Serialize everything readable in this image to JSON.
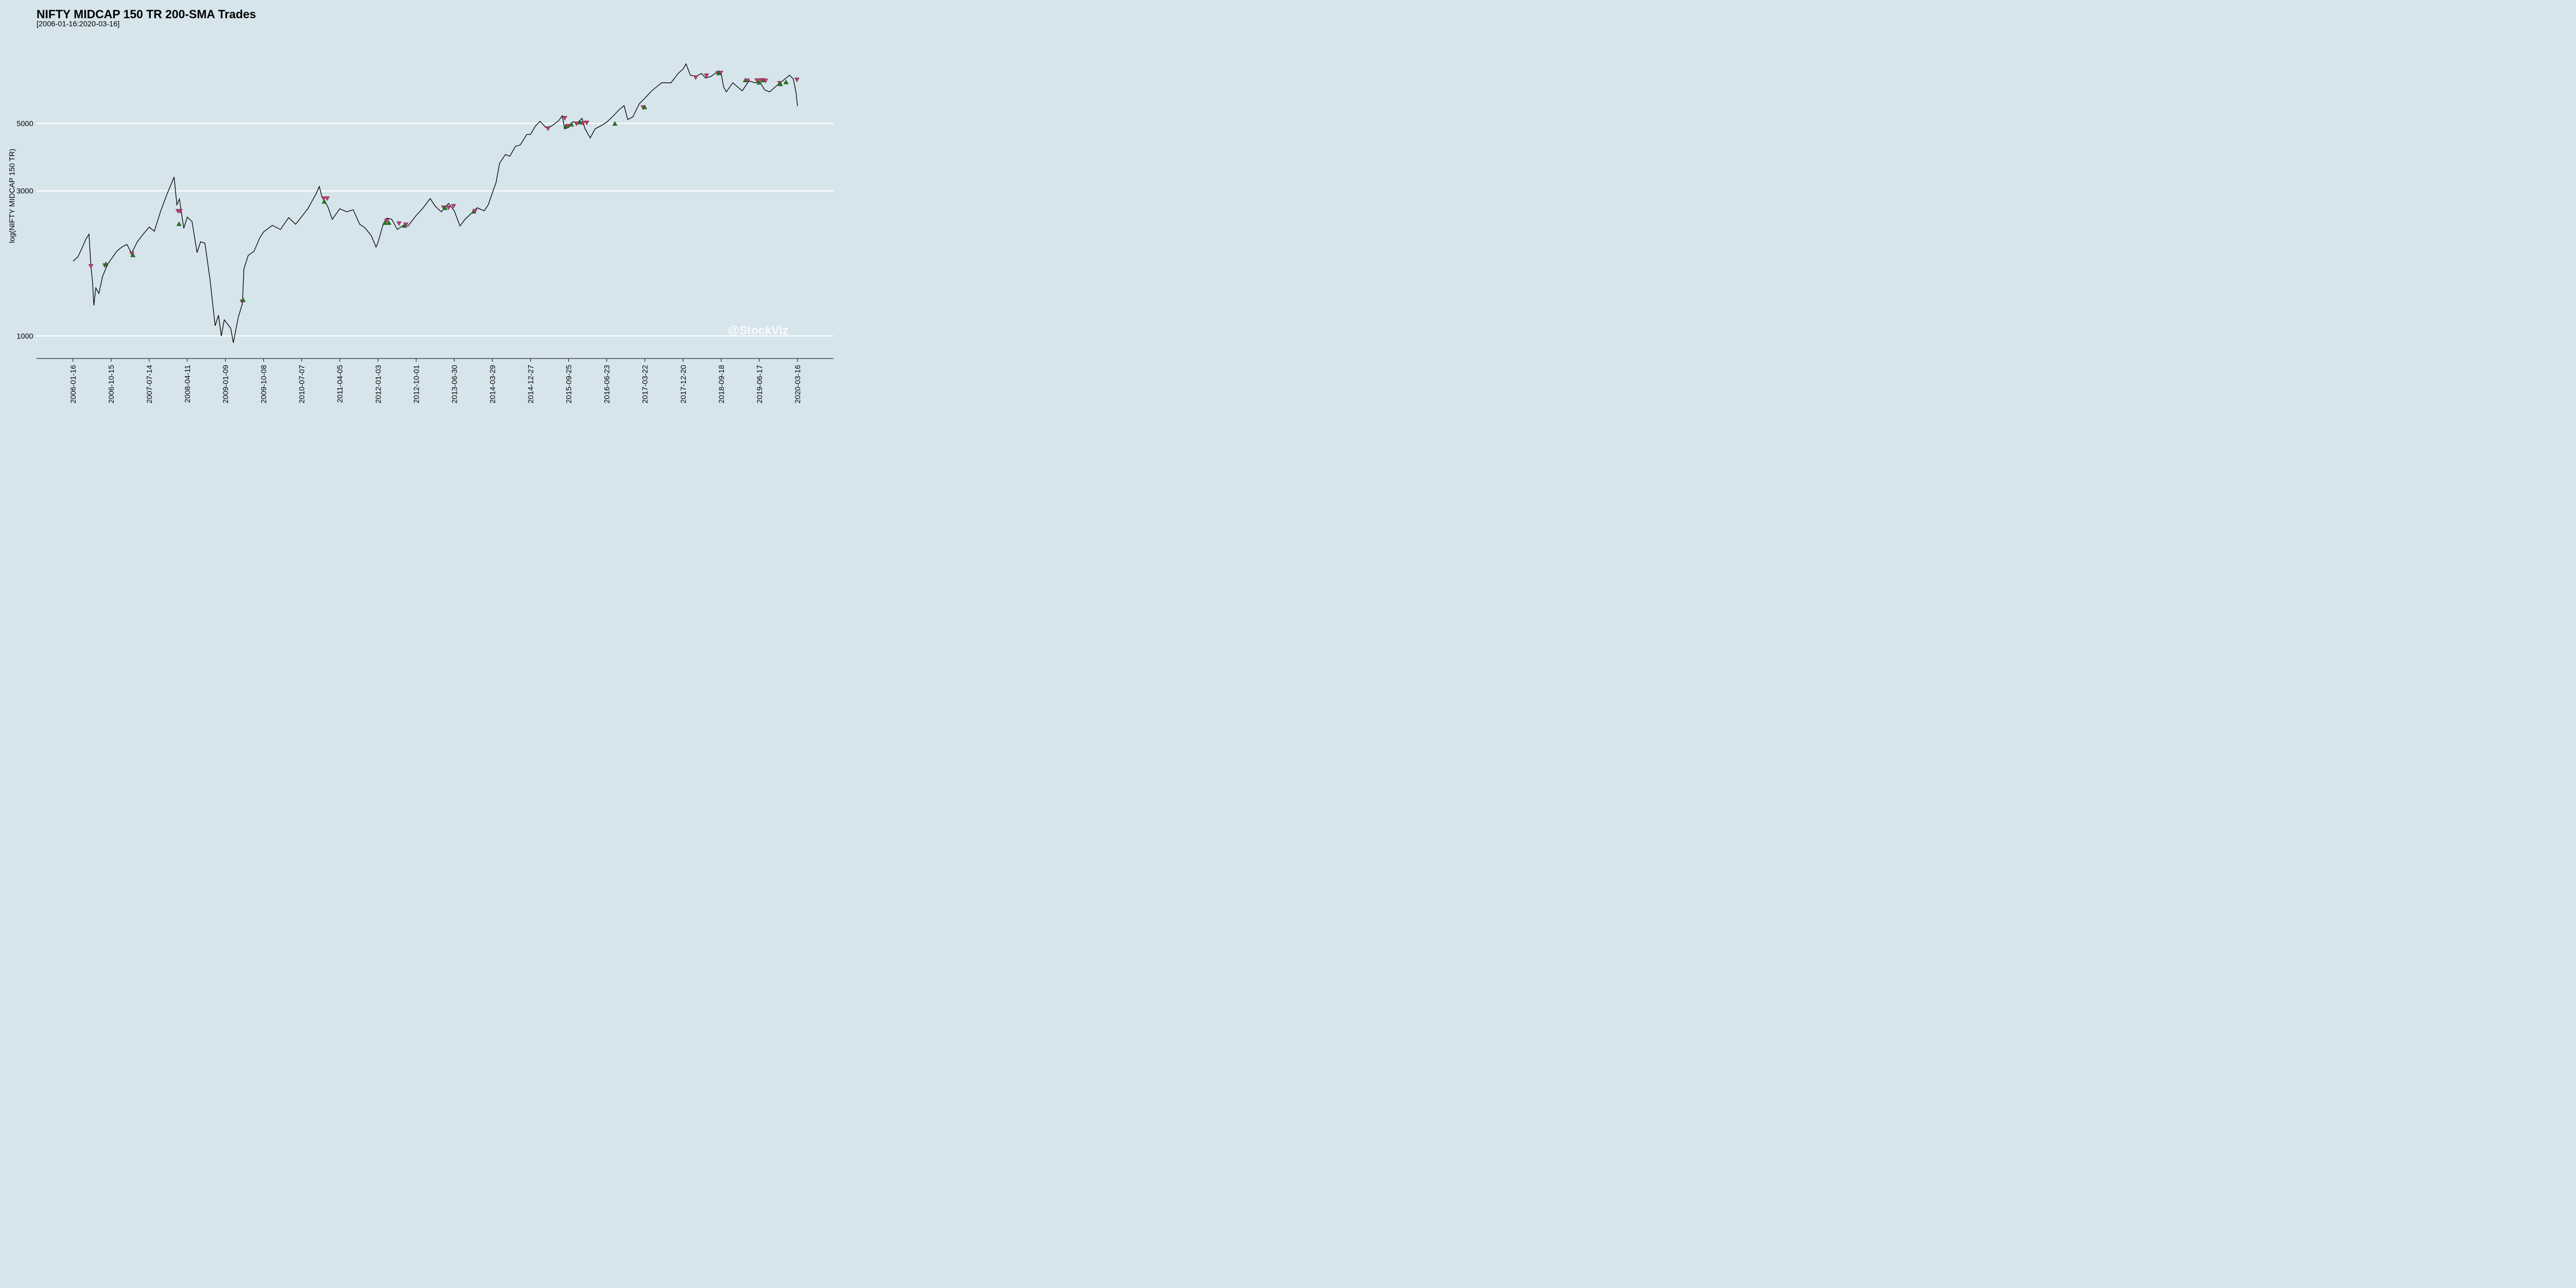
{
  "chart_data": {
    "type": "line",
    "title": "NIFTY MIDCAP 150 TR 200-SMA Trades",
    "subtitle": "[2006-01-16:2020-03-16]",
    "xlabel": "",
    "ylabel": "log(NIFTY MIDCAP 150 TR)",
    "y_scale": "log",
    "ylim": [
      930,
      8400
    ],
    "y_ticks": [
      1000,
      3000,
      5000
    ],
    "grid": "horizontal",
    "watermark": "@StockViz",
    "x_ticks": [
      "2006-01-16",
      "2006-10-15",
      "2007-07-14",
      "2008-04-11",
      "2009-01-09",
      "2009-10-08",
      "2010-07-07",
      "2011-04-05",
      "2012-01-03",
      "2012-10-01",
      "2013-06-30",
      "2014-03-29",
      "2014-12-27",
      "2015-09-25",
      "2016-06-23",
      "2017-03-22",
      "2017-12-20",
      "2018-09-18",
      "2019-06-17",
      "2020-03-16"
    ],
    "series": [
      {
        "name": "",
        "color": "#000000",
        "points": [
          [
            "2006-01-16",
            1760
          ],
          [
            "2006-02-20",
            1820
          ],
          [
            "2006-03-25",
            1960
          ],
          [
            "2006-04-20",
            2090
          ],
          [
            "2006-05-10",
            2160
          ],
          [
            "2006-05-24",
            1700
          ],
          [
            "2006-06-05",
            1500
          ],
          [
            "2006-06-14",
            1260
          ],
          [
            "2006-06-28",
            1440
          ],
          [
            "2006-07-20",
            1380
          ],
          [
            "2006-08-15",
            1570
          ],
          [
            "2006-09-20",
            1720
          ],
          [
            "2006-10-20",
            1800
          ],
          [
            "2006-11-25",
            1900
          ],
          [
            "2006-12-30",
            1960
          ],
          [
            "2007-02-05",
            2000
          ],
          [
            "2007-03-10",
            1870
          ],
          [
            "2007-04-20",
            2040
          ],
          [
            "2007-06-01",
            2160
          ],
          [
            "2007-07-14",
            2280
          ],
          [
            "2007-08-20",
            2210
          ],
          [
            "2007-10-01",
            2550
          ],
          [
            "2007-11-15",
            2900
          ],
          [
            "2008-01-08",
            3330
          ],
          [
            "2008-01-28",
            2700
          ],
          [
            "2008-02-15",
            2820
          ],
          [
            "2008-03-17",
            2260
          ],
          [
            "2008-04-11",
            2460
          ],
          [
            "2008-05-15",
            2380
          ],
          [
            "2008-06-20",
            1880
          ],
          [
            "2008-07-15",
            2040
          ],
          [
            "2008-08-15",
            2020
          ],
          [
            "2008-09-20",
            1540
          ],
          [
            "2008-10-27",
            1080
          ],
          [
            "2008-11-20",
            1170
          ],
          [
            "2008-12-10",
            1000
          ],
          [
            "2008-12-31",
            1130
          ],
          [
            "2009-02-15",
            1060
          ],
          [
            "2009-03-06",
            950
          ],
          [
            "2009-04-10",
            1150
          ],
          [
            "2009-05-10",
            1280
          ],
          [
            "2009-05-20",
            1660
          ],
          [
            "2009-06-20",
            1840
          ],
          [
            "2009-08-01",
            1900
          ],
          [
            "2009-09-10",
            2100
          ],
          [
            "2009-10-08",
            2200
          ],
          [
            "2009-12-10",
            2310
          ],
          [
            "2010-02-05",
            2240
          ],
          [
            "2010-04-05",
            2450
          ],
          [
            "2010-05-25",
            2330
          ],
          [
            "2010-07-07",
            2470
          ],
          [
            "2010-08-20",
            2620
          ],
          [
            "2010-10-15",
            2920
          ],
          [
            "2010-11-10",
            3100
          ],
          [
            "2010-11-30",
            2850
          ],
          [
            "2011-01-10",
            2660
          ],
          [
            "2011-02-10",
            2420
          ],
          [
            "2011-04-05",
            2620
          ],
          [
            "2011-05-25",
            2560
          ],
          [
            "2011-07-10",
            2600
          ],
          [
            "2011-08-25",
            2330
          ],
          [
            "2011-10-01",
            2270
          ],
          [
            "2011-11-15",
            2140
          ],
          [
            "2011-12-20",
            1960
          ],
          [
            "2012-01-03",
            2030
          ],
          [
            "2012-02-05",
            2300
          ],
          [
            "2012-03-05",
            2440
          ],
          [
            "2012-04-10",
            2420
          ],
          [
            "2012-05-20",
            2240
          ],
          [
            "2012-06-30",
            2310
          ],
          [
            "2012-08-05",
            2300
          ],
          [
            "2012-10-01",
            2490
          ],
          [
            "2012-11-15",
            2620
          ],
          [
            "2013-01-10",
            2830
          ],
          [
            "2013-02-15",
            2670
          ],
          [
            "2013-03-30",
            2560
          ],
          [
            "2013-05-20",
            2730
          ],
          [
            "2013-06-30",
            2580
          ],
          [
            "2013-08-10",
            2300
          ],
          [
            "2013-09-15",
            2420
          ],
          [
            "2013-10-30",
            2530
          ],
          [
            "2013-12-10",
            2640
          ],
          [
            "2014-01-30",
            2580
          ],
          [
            "2014-02-28",
            2700
          ],
          [
            "2014-03-29",
            2950
          ],
          [
            "2014-04-25",
            3200
          ],
          [
            "2014-05-20",
            3700
          ],
          [
            "2014-06-30",
            3950
          ],
          [
            "2014-08-01",
            3900
          ],
          [
            "2014-09-10",
            4200
          ],
          [
            "2014-10-15",
            4250
          ],
          [
            "2014-11-30",
            4600
          ],
          [
            "2014-12-27",
            4600
          ],
          [
            "2015-01-30",
            4900
          ],
          [
            "2015-03-05",
            5080
          ],
          [
            "2015-04-15",
            4850
          ],
          [
            "2015-05-25",
            4900
          ],
          [
            "2015-07-15",
            5100
          ],
          [
            "2015-08-10",
            5300
          ],
          [
            "2015-08-28",
            4800
          ],
          [
            "2015-09-25",
            4850
          ],
          [
            "2015-10-25",
            5060
          ],
          [
            "2015-12-01",
            5050
          ],
          [
            "2015-12-30",
            5200
          ],
          [
            "2016-01-20",
            4800
          ],
          [
            "2016-02-26",
            4480
          ],
          [
            "2016-04-01",
            4800
          ],
          [
            "2016-05-15",
            4920
          ],
          [
            "2016-06-23",
            5050
          ],
          [
            "2016-08-10",
            5300
          ],
          [
            "2016-09-20",
            5550
          ],
          [
            "2016-10-25",
            5720
          ],
          [
            "2016-11-20",
            5150
          ],
          [
            "2016-12-26",
            5250
          ],
          [
            "2017-02-10",
            5800
          ],
          [
            "2017-03-22",
            6050
          ],
          [
            "2017-05-10",
            6400
          ],
          [
            "2017-07-20",
            6800
          ],
          [
            "2017-09-25",
            6800
          ],
          [
            "2017-11-15",
            7300
          ],
          [
            "2017-12-20",
            7550
          ],
          [
            "2018-01-10",
            7850
          ],
          [
            "2018-02-10",
            7200
          ],
          [
            "2018-03-25",
            7150
          ],
          [
            "2018-05-01",
            7300
          ],
          [
            "2018-05-30",
            7050
          ],
          [
            "2018-07-10",
            7150
          ],
          [
            "2018-08-31",
            7450
          ],
          [
            "2018-09-18",
            7300
          ],
          [
            "2018-10-05",
            6600
          ],
          [
            "2018-10-25",
            6350
          ],
          [
            "2018-12-10",
            6800
          ],
          [
            "2019-02-15",
            6400
          ],
          [
            "2019-04-05",
            6900
          ],
          [
            "2019-05-20",
            6800
          ],
          [
            "2019-06-17",
            6900
          ],
          [
            "2019-07-25",
            6450
          ],
          [
            "2019-08-30",
            6350
          ],
          [
            "2019-10-10",
            6600
          ],
          [
            "2019-11-30",
            6900
          ],
          [
            "2020-01-20",
            7200
          ],
          [
            "2020-02-15",
            7000
          ],
          [
            "2020-03-06",
            6300
          ],
          [
            "2020-03-16",
            5700
          ]
        ]
      }
    ],
    "trades": [
      {
        "type": "exit",
        "date": "2006-05-24",
        "value": 1700
      },
      {
        "type": "exit",
        "date": "2006-09-01",
        "value": 1710
      },
      {
        "type": "entry",
        "date": "2006-09-08",
        "value": 1720
      },
      {
        "type": "exit",
        "date": "2007-03-12",
        "value": 1870
      },
      {
        "type": "entry",
        "date": "2007-03-20",
        "value": 1840
      },
      {
        "type": "exit",
        "date": "2008-02-05",
        "value": 2580
      },
      {
        "type": "exit",
        "date": "2008-02-20",
        "value": 2580
      },
      {
        "type": "entry",
        "date": "2008-02-12",
        "value": 2330
      },
      {
        "type": "exit",
        "date": "2009-05-08",
        "value": 1300
      },
      {
        "type": "entry",
        "date": "2009-05-15",
        "value": 1310
      },
      {
        "type": "exit",
        "date": "2010-12-10",
        "value": 2840
      },
      {
        "type": "entry",
        "date": "2010-12-15",
        "value": 2760
      },
      {
        "type": "exit",
        "date": "2011-01-05",
        "value": 2840
      },
      {
        "type": "entry",
        "date": "2012-02-20",
        "value": 2350
      },
      {
        "type": "exit",
        "date": "2012-03-05",
        "value": 2400
      },
      {
        "type": "entry",
        "date": "2012-03-20",
        "value": 2350
      },
      {
        "type": "exit",
        "date": "2012-06-01",
        "value": 2350
      },
      {
        "type": "entry",
        "date": "2012-07-10",
        "value": 2300
      },
      {
        "type": "exit",
        "date": "2012-07-20",
        "value": 2330
      },
      {
        "type": "exit",
        "date": "2013-04-15",
        "value": 2650
      },
      {
        "type": "entry",
        "date": "2013-04-25",
        "value": 2630
      },
      {
        "type": "exit",
        "date": "2013-05-20",
        "value": 2650
      },
      {
        "type": "exit",
        "date": "2013-06-25",
        "value": 2680
      },
      {
        "type": "entry",
        "date": "2013-11-15",
        "value": 2560
      },
      {
        "type": "exit",
        "date": "2013-11-25",
        "value": 2580
      },
      {
        "type": "exit",
        "date": "2015-05-01",
        "value": 4820
      },
      {
        "type": "exit",
        "date": "2015-08-28",
        "value": 5220
      },
      {
        "type": "entry",
        "date": "2015-09-05",
        "value": 4880
      },
      {
        "type": "exit",
        "date": "2015-09-20",
        "value": 4920
      },
      {
        "type": "entry",
        "date": "2015-10-15",
        "value": 4950
      },
      {
        "type": "exit",
        "date": "2015-11-20",
        "value": 5000
      },
      {
        "type": "entry",
        "date": "2015-12-15",
        "value": 5030
      },
      {
        "type": "exit",
        "date": "2016-01-05",
        "value": 5020
      },
      {
        "type": "exit",
        "date": "2016-02-01",
        "value": 5040
      },
      {
        "type": "entry",
        "date": "2016-08-20",
        "value": 4980
      },
      {
        "type": "exit",
        "date": "2017-03-10",
        "value": 5660
      },
      {
        "type": "entry",
        "date": "2017-03-20",
        "value": 5640
      },
      {
        "type": "exit",
        "date": "2018-03-20",
        "value": 7100
      },
      {
        "type": "exit",
        "date": "2018-06-05",
        "value": 7200
      },
      {
        "type": "exit",
        "date": "2018-08-25",
        "value": 7330
      },
      {
        "type": "exit",
        "date": "2018-09-15",
        "value": 7350
      },
      {
        "type": "entry",
        "date": "2018-09-01",
        "value": 7300
      },
      {
        "type": "entry",
        "date": "2019-03-10",
        "value": 6920
      },
      {
        "type": "exit",
        "date": "2019-03-25",
        "value": 6930
      },
      {
        "type": "exit",
        "date": "2019-06-01",
        "value": 6940
      },
      {
        "type": "entry",
        "date": "2019-06-15",
        "value": 6800
      },
      {
        "type": "exit",
        "date": "2019-07-01",
        "value": 6950
      },
      {
        "type": "entry",
        "date": "2019-07-20",
        "value": 6920
      },
      {
        "type": "exit",
        "date": "2019-08-01",
        "value": 6930
      },
      {
        "type": "exit",
        "date": "2019-11-10",
        "value": 6800
      },
      {
        "type": "entry",
        "date": "2019-11-15",
        "value": 6720
      },
      {
        "type": "entry",
        "date": "2019-12-25",
        "value": 6820
      },
      {
        "type": "exit",
        "date": "2020-03-12",
        "value": 6980
      }
    ],
    "marker_colors": {
      "entry": "#1a7a1a",
      "exit": "#c2366b"
    }
  }
}
